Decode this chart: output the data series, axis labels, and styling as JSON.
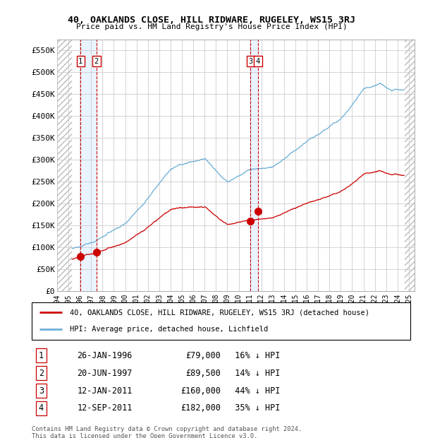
{
  "title1": "40, OAKLANDS CLOSE, HILL RIDWARE, RUGELEY, WS15 3RJ",
  "title2": "Price paid vs. HM Land Registry's House Price Index (HPI)",
  "ylim": [
    0,
    575000
  ],
  "yticks": [
    0,
    50000,
    100000,
    150000,
    200000,
    250000,
    300000,
    350000,
    400000,
    450000,
    500000,
    550000
  ],
  "ytick_labels": [
    "£0",
    "£50K",
    "£100K",
    "£150K",
    "£200K",
    "£250K",
    "£300K",
    "£350K",
    "£400K",
    "£450K",
    "£500K",
    "£550K"
  ],
  "hpi_color": "#6baed6",
  "price_color": "#cc0000",
  "dashed_line_color": "#cc0000",
  "grid_color": "#cccccc",
  "hatch_color": "#bbbbbb",
  "transactions": [
    {
      "label": "1",
      "date_x": 1996.07,
      "price": 79000,
      "hpi_pct": 16,
      "date_str": "26-JAN-1996"
    },
    {
      "label": "2",
      "date_x": 1997.47,
      "price": 89500,
      "hpi_pct": 14,
      "date_str": "20-JUN-1997"
    },
    {
      "label": "3",
      "date_x": 2011.04,
      "price": 160000,
      "hpi_pct": 44,
      "date_str": "12-JAN-2011"
    },
    {
      "label": "4",
      "date_x": 2011.71,
      "price": 182000,
      "hpi_pct": 35,
      "date_str": "12-SEP-2011"
    }
  ],
  "legend_line1": "40, OAKLANDS CLOSE, HILL RIDWARE, RUGELEY, WS15 3RJ (detached house)",
  "legend_line2": "HPI: Average price, detached house, Lichfield",
  "footer1": "Contains HM Land Registry data © Crown copyright and database right 2024.",
  "footer2": "This data is licensed under the Open Government Licence v3.0.",
  "xmin": 1994.0,
  "xmax": 2025.5,
  "hatch_left_end": 1995.3,
  "hatch_right_start": 2024.6
}
